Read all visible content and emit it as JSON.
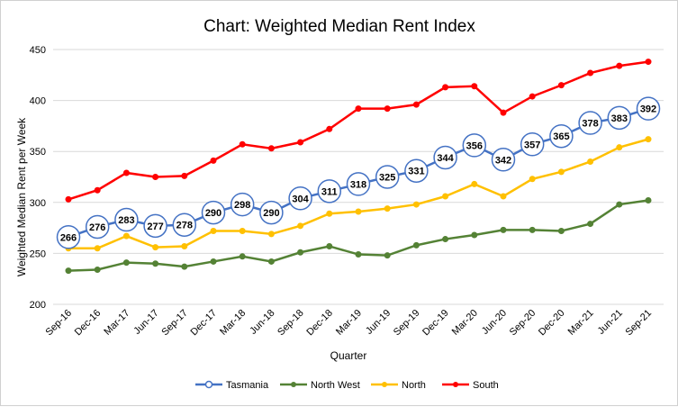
{
  "chart_data": {
    "type": "line",
    "title": "Chart: Weighted Median Rent Index",
    "xlabel": "Quarter",
    "ylabel": "Weighted Median Rent per Week",
    "ylim": [
      200,
      450
    ],
    "yticks": [
      200,
      250,
      300,
      350,
      400,
      450
    ],
    "grid": true,
    "legend_position": "bottom",
    "categories": [
      "Sep-16",
      "Dec-16",
      "Mar-17",
      "Jun-17",
      "Sep-17",
      "Dec-17",
      "Mar-18",
      "Jun-18",
      "Sep-18",
      "Dec-18",
      "Mar-19",
      "Jun-19",
      "Sep-19",
      "Dec-19",
      "Mar-20",
      "Jun-20",
      "Sep-20",
      "Dec-20",
      "Mar-21",
      "Jun-21",
      "Sep-21"
    ],
    "series": [
      {
        "name": "Tasmania",
        "color": "#4472C4",
        "labeled": true,
        "values": [
          266,
          276,
          283,
          277,
          278,
          290,
          298,
          290,
          304,
          311,
          318,
          325,
          331,
          344,
          356,
          342,
          357,
          365,
          378,
          383,
          392
        ]
      },
      {
        "name": "North West",
        "color": "#548235",
        "labeled": false,
        "values": [
          233,
          234,
          241,
          240,
          237,
          242,
          247,
          242,
          251,
          257,
          249,
          248,
          258,
          264,
          268,
          273,
          273,
          272,
          279,
          298,
          302
        ]
      },
      {
        "name": "North",
        "color": "#FFC000",
        "labeled": false,
        "values": [
          255,
          255,
          267,
          256,
          257,
          272,
          272,
          269,
          277,
          289,
          291,
          294,
          298,
          306,
          318,
          306,
          323,
          330,
          340,
          354,
          362
        ]
      },
      {
        "name": "South",
        "color": "#FF0000",
        "labeled": false,
        "values": [
          303,
          312,
          329,
          325,
          326,
          341,
          357,
          353,
          359,
          372,
          392,
          392,
          396,
          413,
          414,
          388,
          404,
          415,
          427,
          434,
          438
        ]
      }
    ]
  }
}
